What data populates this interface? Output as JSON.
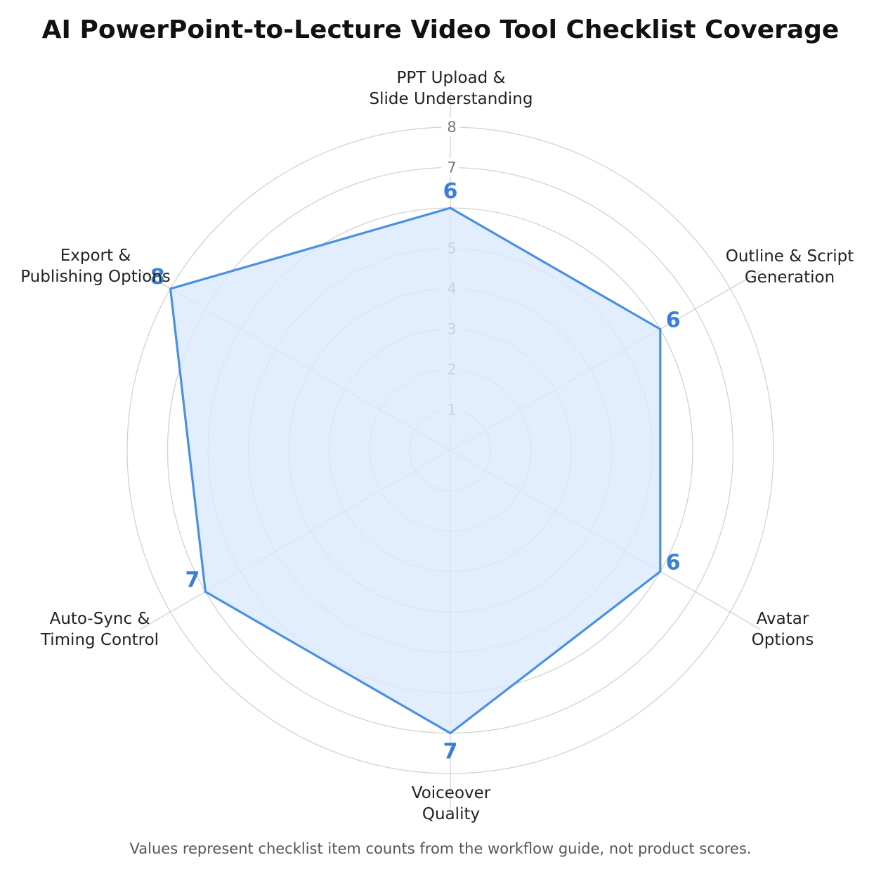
{
  "chart_data": {
    "type": "radar",
    "title": "AI PowerPoint-to-Lecture Video Tool Checklist Coverage",
    "footnote": "Values represent checklist item counts from the workflow guide, not product scores.",
    "axes": [
      {
        "label_lines": [
          "PPT Upload &",
          "Slide Understanding"
        ],
        "value": 6
      },
      {
        "label_lines": [
          "Outline & Script",
          "Generation"
        ],
        "value": 6
      },
      {
        "label_lines": [
          "Avatar",
          "Options"
        ],
        "value": 6
      },
      {
        "label_lines": [
          "Voiceover",
          "Quality"
        ],
        "value": 7
      },
      {
        "label_lines": [
          "Auto-Sync &",
          "Timing Control"
        ],
        "value": 7
      },
      {
        "label_lines": [
          "Export &",
          "Publishing Options"
        ],
        "value": 8
      }
    ],
    "rlim": [
      0,
      8
    ],
    "ticks": [
      1,
      2,
      3,
      4,
      5,
      6,
      7,
      8
    ],
    "grid": true,
    "colors": {
      "line": "#4a90e2",
      "fill": "#dbeafd",
      "value_label": "#3a7fd5",
      "grid": "#d2d2d2"
    }
  }
}
